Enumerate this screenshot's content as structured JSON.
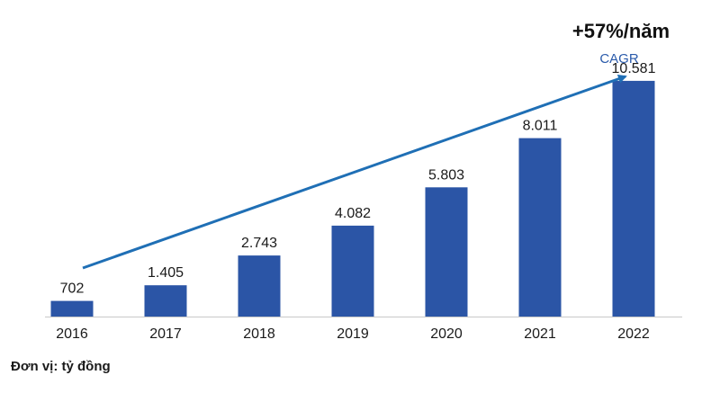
{
  "chart_data": {
    "type": "bar",
    "categories": [
      "2016",
      "2017",
      "2018",
      "2019",
      "2020",
      "2021",
      "2022"
    ],
    "values": [
      702,
      1405,
      2743,
      4082,
      5803,
      8011,
      10581
    ],
    "value_labels": [
      "702",
      "1.405",
      "2.743",
      "4.082",
      "5.803",
      "8.011",
      "10.581"
    ],
    "ylim": [
      0,
      13000
    ],
    "grid": false,
    "legend": "none",
    "colors": {
      "bar": "#2b55a6",
      "arrow": "#1f6fb5",
      "cagr_label": "#2b5bab",
      "axis": "#c8c8c8"
    },
    "annotation": {
      "value": "+57%/năm",
      "label": "CAGR"
    },
    "unit_note": "Đơn vị: tỷ đồng"
  }
}
